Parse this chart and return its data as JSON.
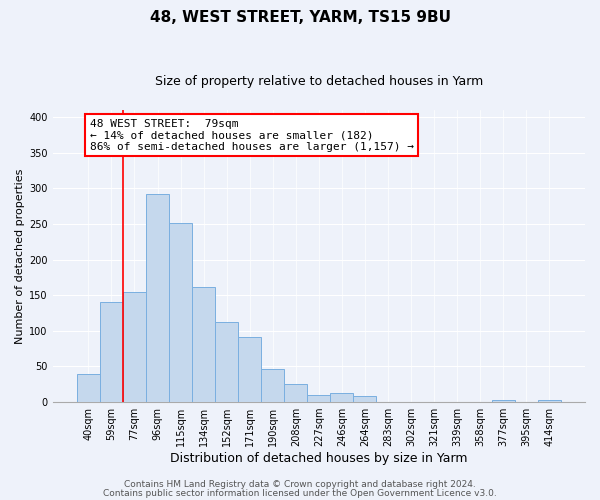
{
  "title": "48, WEST STREET, YARM, TS15 9BU",
  "subtitle": "Size of property relative to detached houses in Yarm",
  "xlabel": "Distribution of detached houses by size in Yarm",
  "ylabel": "Number of detached properties",
  "bar_labels": [
    "40sqm",
    "59sqm",
    "77sqm",
    "96sqm",
    "115sqm",
    "134sqm",
    "152sqm",
    "171sqm",
    "190sqm",
    "208sqm",
    "227sqm",
    "246sqm",
    "264sqm",
    "283sqm",
    "302sqm",
    "321sqm",
    "339sqm",
    "358sqm",
    "377sqm",
    "395sqm",
    "414sqm"
  ],
  "bar_values": [
    40,
    140,
    155,
    292,
    251,
    161,
    113,
    92,
    46,
    25,
    10,
    13,
    8,
    0,
    0,
    0,
    0,
    0,
    3,
    0,
    3
  ],
  "bar_color": "#c5d8ed",
  "bar_edge_color": "#7aafe0",
  "vline_color": "red",
  "vline_index": 2,
  "ylim": [
    0,
    410
  ],
  "yticks": [
    0,
    50,
    100,
    150,
    200,
    250,
    300,
    350,
    400
  ],
  "annotation_line1": "48 WEST STREET:  79sqm",
  "annotation_line2": "← 14% of detached houses are smaller (182)",
  "annotation_line3": "86% of semi-detached houses are larger (1,157) →",
  "footer_line1": "Contains HM Land Registry data © Crown copyright and database right 2024.",
  "footer_line2": "Contains public sector information licensed under the Open Government Licence v3.0.",
  "background_color": "#eef2fa",
  "grid_color": "#ffffff",
  "title_fontsize": 11,
  "subtitle_fontsize": 9,
  "xlabel_fontsize": 9,
  "ylabel_fontsize": 8,
  "tick_fontsize": 7,
  "annotation_fontsize": 8,
  "footer_fontsize": 6.5
}
